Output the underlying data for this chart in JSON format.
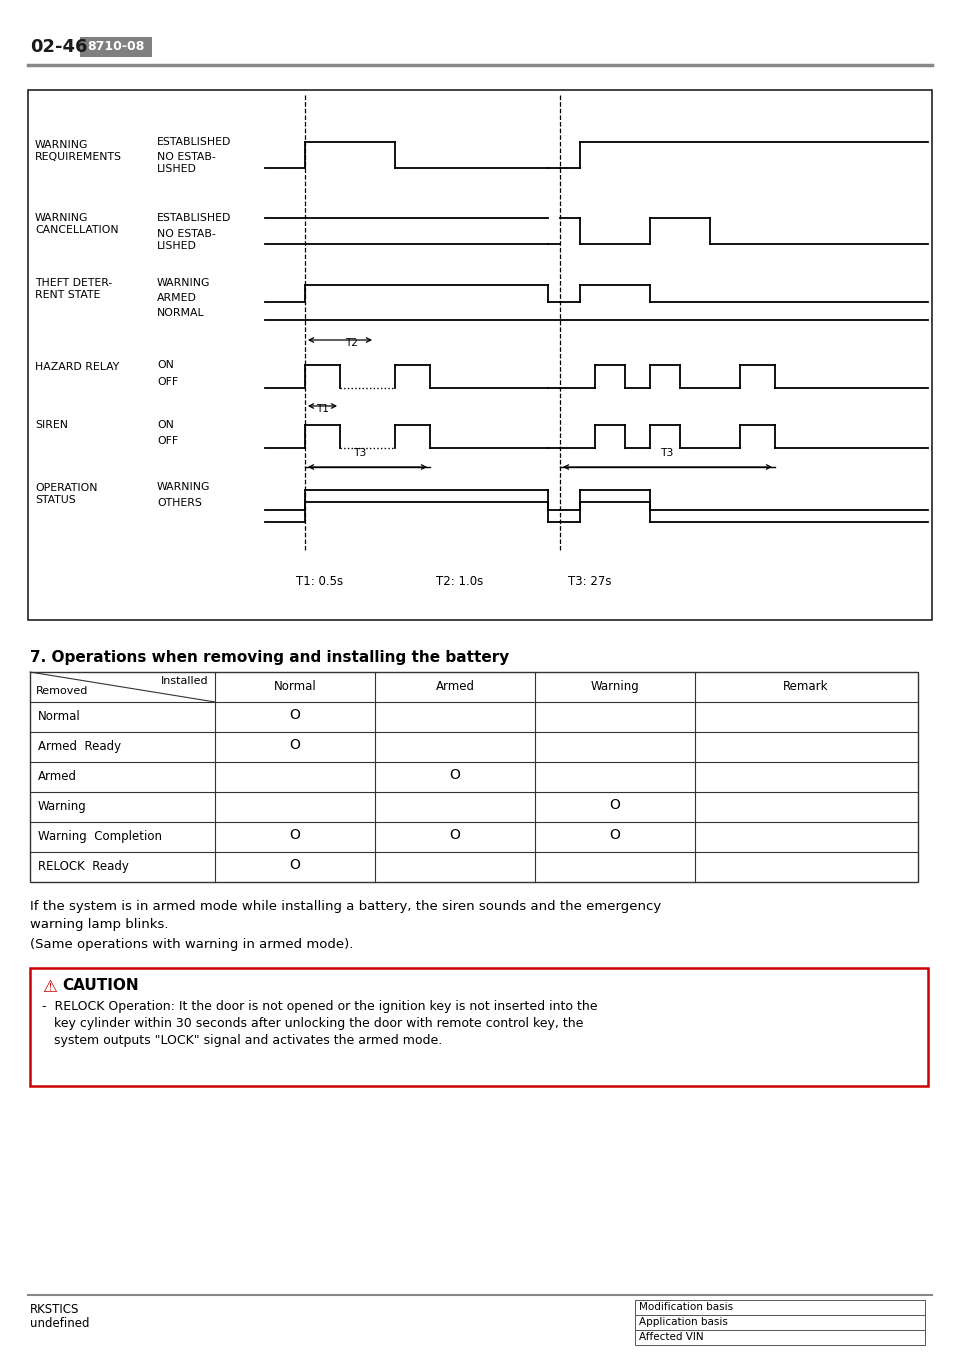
{
  "page_num": "02-46",
  "page_code": "8710-08",
  "bg_color": "#ffffff",
  "section_title": "7. Operations when removing and installing the battery",
  "table_headers": [
    "",
    "Normal",
    "Armed",
    "Warning",
    "Remark"
  ],
  "table_rows": [
    [
      "Normal",
      "O",
      "",
      "",
      ""
    ],
    [
      "Armed  Ready",
      "O",
      "",
      "",
      ""
    ],
    [
      "Armed",
      "",
      "O",
      "",
      ""
    ],
    [
      "Warning",
      "",
      "",
      "O",
      ""
    ],
    [
      "Warning  Completion",
      "O",
      "O",
      "O",
      ""
    ],
    [
      "RELOCK  Ready",
      "O",
      "",
      "",
      ""
    ]
  ],
  "para1": "If the system is in armed mode while installing a battery, the siren sounds and the emergency\nwarning lamp blinks.",
  "para2": "(Same operations with warning in armed mode).",
  "caution_title": "CAUTION",
  "caution_text": "-  RELOCK Operation: It the door is not opened or the ignition key is not inserted into the\n   key cylinder within 30 seconds after unlocking the door with remote control key, the\n   system outputs \"LOCK\" signal and activates the armed mode.",
  "footer_left1": "RKSTICS",
  "footer_left2": "undefined",
  "footer_right": [
    "Modification basis",
    "Application basis",
    "Affected VIN"
  ],
  "timing_labels": [
    "T1: 0.5s",
    "T2: 1.0s",
    "T3: 27s"
  ]
}
